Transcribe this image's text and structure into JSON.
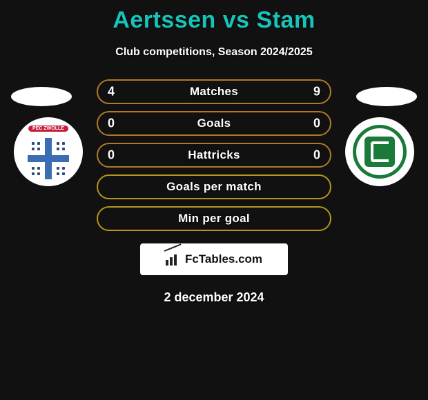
{
  "title_color": "#17c4b9",
  "title": "Aertssen vs Stam",
  "subtitle": "Club competitions, Season 2024/2025",
  "date": "2 december 2024",
  "fctables_label": "FcTables.com",
  "teams": {
    "left": {
      "name": "PEC Zwolle",
      "ribbon_text": "PEC ZWOLLE",
      "badge_bg": "#ffffff"
    },
    "right": {
      "name": "FC Groningen",
      "badge_bg": "#ffffff"
    }
  },
  "rows": [
    {
      "label": "Matches",
      "left": "4",
      "right": "9",
      "border_color": "#b07a2a",
      "left_share": 0.31
    },
    {
      "label": "Goals",
      "left": "0",
      "right": "0",
      "border_color": "#b07a2a",
      "left_share": 0.5
    },
    {
      "label": "Hattricks",
      "left": "0",
      "right": "0",
      "border_color": "#b07a2a",
      "left_share": 0.5
    },
    {
      "label": "Goals per match",
      "left": "",
      "right": "",
      "border_color": "#b5951f",
      "left_share": null
    },
    {
      "label": "Min per goal",
      "left": "",
      "right": "",
      "border_color": "#b5951f",
      "left_share": null
    }
  ]
}
